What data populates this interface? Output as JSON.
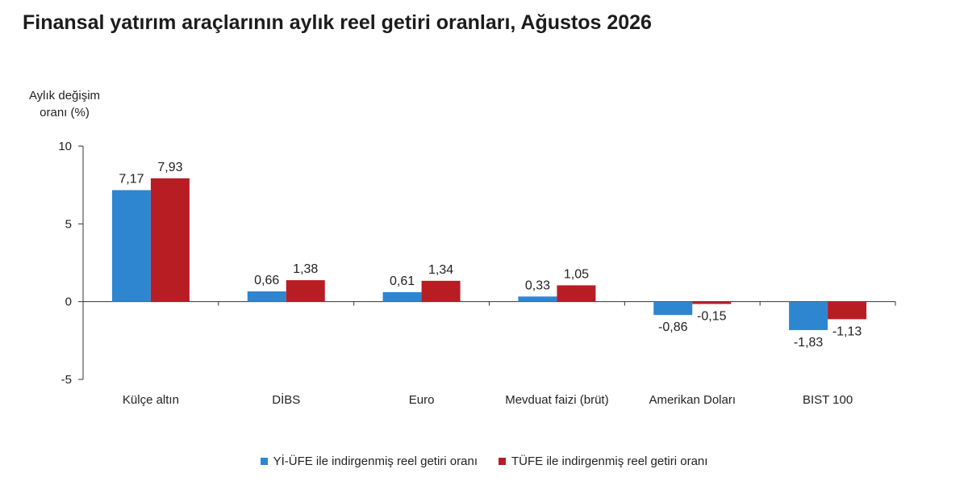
{
  "title": "Finansal yatırım araçlarının aylık reel getiri oranları, Ağustos 2026",
  "colors": {
    "series1": "#2e86d1",
    "series2": "#b81d24",
    "axis": "#333333"
  },
  "chart_data": {
    "type": "bar",
    "title": "Finansal yatırım araçlarının aylık reel getiri oranları, Ağustos 2026",
    "ylabel": "Aylık değişim oranı (%)",
    "xlabel": "",
    "categories": [
      "Külçe altın",
      "DİBS",
      "Euro",
      "Mevduat faizi (brüt)",
      "Amerikan Doları",
      "BIST 100"
    ],
    "series": [
      {
        "name": "Yİ-ÜFE ile indirgenmiş reel getiri oranı",
        "values": [
          7.17,
          0.66,
          0.61,
          0.33,
          -0.86,
          -1.83
        ]
      },
      {
        "name": "TÜFE ile indirgenmiş reel getiri oranı",
        "values": [
          7.93,
          1.38,
          1.34,
          1.05,
          -0.15,
          -1.13
        ]
      }
    ],
    "data_labels": [
      [
        "7,17",
        "0,66",
        "0,61",
        "0,33",
        "-0,86",
        "-1,83"
      ],
      [
        "7,93",
        "1,38",
        "1,34",
        "1,05",
        "-0,15",
        "-1,13"
      ]
    ],
    "ylim": [
      -5,
      10
    ],
    "yticks": [
      -5,
      0,
      5,
      10
    ],
    "ytick_labels": [
      "-5",
      "0",
      "5",
      "10"
    ],
    "grid": false,
    "legend_position": "bottom-center"
  }
}
